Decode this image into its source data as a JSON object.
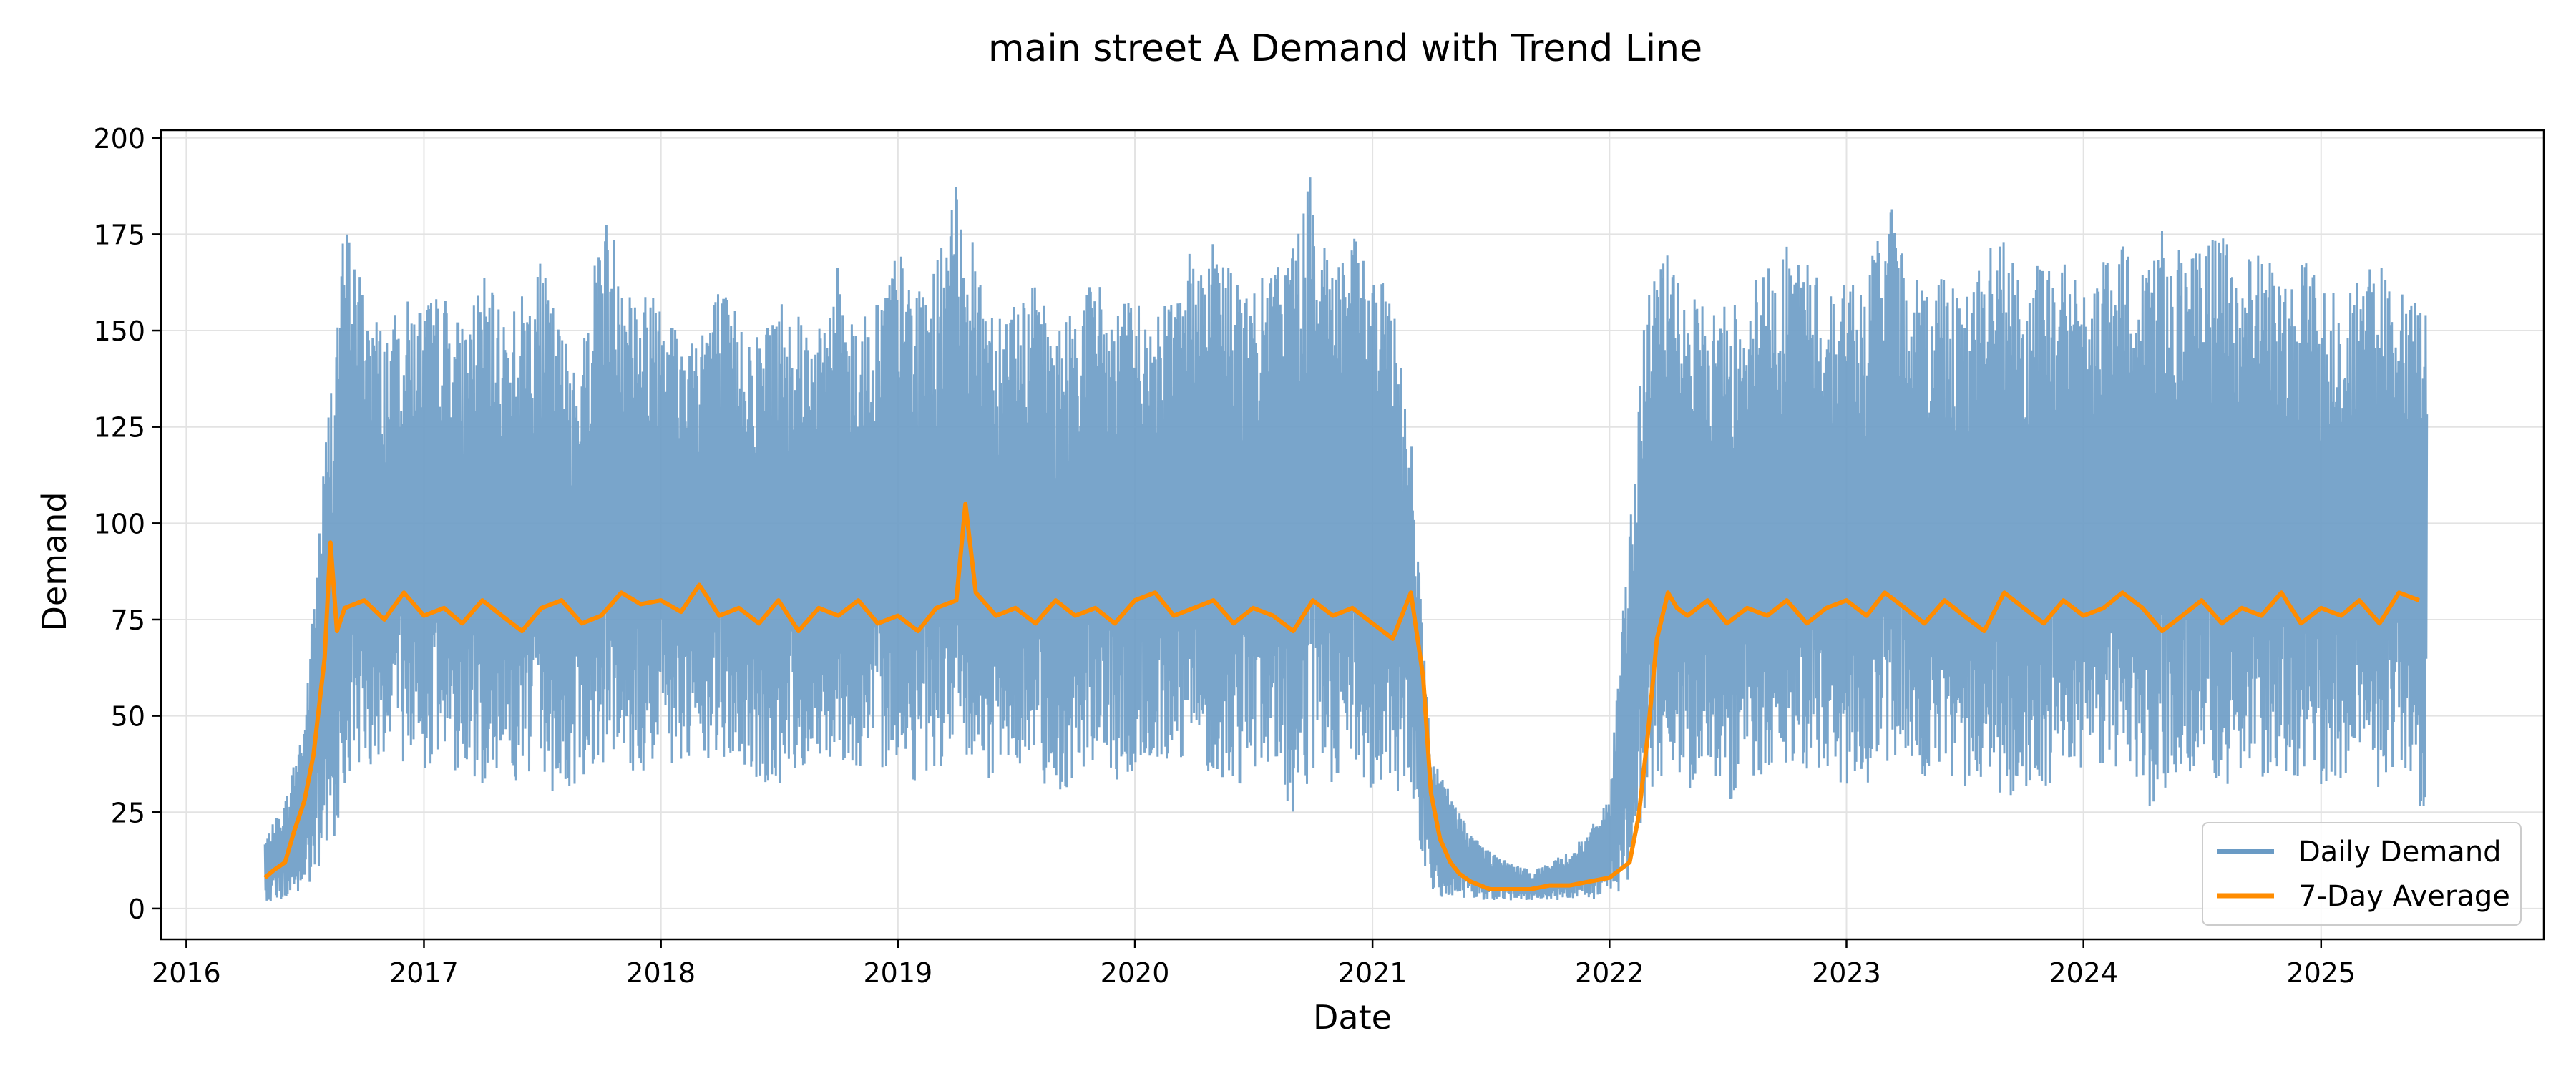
{
  "chart_data": {
    "type": "line",
    "title": "main street A Demand with Trend Line",
    "xlabel": "Date",
    "ylabel": "Demand",
    "xlim": [
      "2015-11-23",
      "2025-12-10"
    ],
    "ylim": [
      -8,
      202
    ],
    "x_ticks": [
      "2016",
      "2017",
      "2018",
      "2019",
      "2020",
      "2021",
      "2022",
      "2023",
      "2024",
      "2025"
    ],
    "y_ticks": [
      0,
      25,
      50,
      75,
      100,
      125,
      150,
      175,
      200
    ],
    "grid": true,
    "legend_position": "lower right",
    "series": [
      {
        "name": "Daily Demand",
        "color": "#6a9bc5",
        "style": "daily-envelope",
        "x": [
          "2016-05-01",
          "2016-06-01",
          "2016-07-01",
          "2016-08-01",
          "2016-09-01",
          "2016-10-01",
          "2016-11-01",
          "2016-12-01",
          "2017-01-01",
          "2017-02-01",
          "2017-03-01",
          "2017-04-01",
          "2017-05-01",
          "2017-06-01",
          "2017-07-01",
          "2017-08-01",
          "2017-09-01",
          "2017-10-01",
          "2017-11-01",
          "2017-12-01",
          "2018-01-01",
          "2018-02-01",
          "2018-03-01",
          "2018-04-01",
          "2018-05-01",
          "2018-06-01",
          "2018-07-01",
          "2018-08-01",
          "2018-09-01",
          "2018-10-01",
          "2018-11-01",
          "2018-12-01",
          "2019-01-01",
          "2019-02-01",
          "2019-03-01",
          "2019-04-01",
          "2019-05-01",
          "2019-06-01",
          "2019-07-01",
          "2019-08-01",
          "2019-09-01",
          "2019-10-01",
          "2019-11-01",
          "2019-12-01",
          "2020-01-01",
          "2020-02-01",
          "2020-03-01",
          "2020-04-01",
          "2020-05-01",
          "2020-06-01",
          "2020-07-01",
          "2020-08-01",
          "2020-09-01",
          "2020-10-01",
          "2020-11-01",
          "2020-12-01",
          "2021-01-01",
          "2021-02-01",
          "2021-03-01",
          "2021-04-01",
          "2021-05-01",
          "2021-06-01",
          "2021-07-01",
          "2021-08-01",
          "2021-09-01",
          "2021-10-01",
          "2021-11-01",
          "2021-12-01",
          "2022-01-01",
          "2022-02-01",
          "2022-03-01",
          "2022-04-01",
          "2022-05-01",
          "2022-06-01",
          "2022-07-01",
          "2022-08-01",
          "2022-09-01",
          "2022-10-01",
          "2022-11-01",
          "2022-12-01",
          "2023-01-01",
          "2023-02-01",
          "2023-03-01",
          "2023-04-01",
          "2023-05-01",
          "2023-06-01",
          "2023-07-01",
          "2023-08-01",
          "2023-09-01",
          "2023-10-01",
          "2023-11-01",
          "2023-12-01",
          "2024-01-01",
          "2024-02-01",
          "2024-03-01",
          "2024-04-01",
          "2024-05-01",
          "2024-06-01",
          "2024-07-01",
          "2024-08-01",
          "2024-09-01",
          "2024-10-01",
          "2024-11-01",
          "2024-12-01",
          "2025-01-01",
          "2025-02-01",
          "2025-03-01",
          "2025-04-01",
          "2025-05-01",
          "2025-06-01"
        ],
        "min": [
          2,
          2,
          4,
          8,
          30,
          38,
          35,
          38,
          36,
          38,
          34,
          32,
          38,
          30,
          35,
          26,
          34,
          38,
          36,
          33,
          40,
          34,
          36,
          38,
          36,
          32,
          30,
          36,
          38,
          40,
          34,
          36,
          38,
          32,
          36,
          38,
          34,
          32,
          38,
          36,
          28,
          34,
          38,
          32,
          34,
          36,
          38,
          40,
          34,
          30,
          36,
          38,
          20,
          34,
          30,
          36,
          28,
          32,
          26,
          4,
          2,
          2,
          2,
          2,
          2,
          2,
          2,
          2,
          3,
          5,
          30,
          36,
          30,
          40,
          24,
          34,
          30,
          38,
          36,
          34,
          32,
          30,
          36,
          38,
          34,
          32,
          30,
          34,
          28,
          32,
          30,
          36,
          34,
          32,
          38,
          20,
          30,
          34,
          36,
          30,
          32,
          34,
          36,
          32,
          30,
          34,
          36,
          30,
          34,
          26
        ],
        "max": [
          18,
          28,
          50,
          120,
          180,
          162,
          150,
          158,
          158,
          160,
          152,
          165,
          155,
          160,
          168,
          150,
          145,
          182,
          172,
          158,
          168,
          148,
          155,
          162,
          155,
          150,
          160,
          158,
          150,
          168,
          152,
          160,
          172,
          160,
          168,
          188,
          170,
          158,
          160,
          162,
          150,
          158,
          165,
          155,
          160,
          150,
          172,
          170,
          178,
          165,
          160,
          168,
          175,
          192,
          170,
          175,
          165,
          160,
          125,
          40,
          30,
          20,
          15,
          12,
          10,
          12,
          15,
          20,
          30,
          100,
          165,
          170,
          160,
          155,
          158,
          162,
          168,
          172,
          170,
          160,
          165,
          162,
          188,
          170,
          162,
          168,
          160,
          170,
          176,
          160,
          170,
          170,
          160,
          168,
          172,
          170,
          178,
          172,
          170,
          178,
          165,
          175,
          160,
          170,
          165,
          160,
          165,
          168,
          160,
          157
        ],
        "avg_values_note": ""
      },
      {
        "name": "7-Day Average",
        "color": "#ff8c00",
        "x": [
          "2016-05-01",
          "2016-05-15",
          "2016-06-01",
          "2016-06-15",
          "2016-07-01",
          "2016-07-15",
          "2016-08-01",
          "2016-08-10",
          "2016-08-20",
          "2016-09-01",
          "2016-10-01",
          "2016-11-01",
          "2016-12-01",
          "2017-01-01",
          "2017-02-01",
          "2017-03-01",
          "2017-04-01",
          "2017-05-01",
          "2017-06-01",
          "2017-07-01",
          "2017-08-01",
          "2017-09-01",
          "2017-10-01",
          "2017-11-01",
          "2017-12-01",
          "2018-01-01",
          "2018-02-01",
          "2018-03-01",
          "2018-04-01",
          "2018-05-01",
          "2018-06-01",
          "2018-07-01",
          "2018-08-01",
          "2018-09-01",
          "2018-10-01",
          "2018-11-01",
          "2018-12-01",
          "2019-01-01",
          "2019-02-01",
          "2019-03-01",
          "2019-04-01",
          "2019-04-15",
          "2019-05-01",
          "2019-06-01",
          "2019-07-01",
          "2019-08-01",
          "2019-09-01",
          "2019-10-01",
          "2019-11-01",
          "2019-12-01",
          "2020-01-01",
          "2020-02-01",
          "2020-03-01",
          "2020-04-01",
          "2020-05-01",
          "2020-06-01",
          "2020-07-01",
          "2020-08-01",
          "2020-09-01",
          "2020-10-01",
          "2020-11-01",
          "2020-12-01",
          "2021-01-01",
          "2021-02-01",
          "2021-03-01",
          "2021-03-20",
          "2021-04-01",
          "2021-04-15",
          "2021-05-01",
          "2021-05-15",
          "2021-06-01",
          "2021-07-01",
          "2021-08-01",
          "2021-09-01",
          "2021-10-01",
          "2021-11-01",
          "2021-12-01",
          "2022-01-01",
          "2022-02-01",
          "2022-02-15",
          "2022-03-01",
          "2022-03-15",
          "2022-04-01",
          "2022-04-15",
          "2022-05-01",
          "2022-06-01",
          "2022-07-01",
          "2022-08-01",
          "2022-09-01",
          "2022-10-01",
          "2022-11-01",
          "2022-12-01",
          "2023-01-01",
          "2023-02-01",
          "2023-03-01",
          "2023-04-01",
          "2023-05-01",
          "2023-06-01",
          "2023-07-01",
          "2023-08-01",
          "2023-09-01",
          "2023-10-01",
          "2023-11-01",
          "2023-12-01",
          "2024-01-01",
          "2024-02-01",
          "2024-03-01",
          "2024-04-01",
          "2024-05-01",
          "2024-06-01",
          "2024-07-01",
          "2024-08-01",
          "2024-09-01",
          "2024-10-01",
          "2024-11-01",
          "2024-12-01",
          "2025-01-01",
          "2025-02-01",
          "2025-03-01",
          "2025-04-01",
          "2025-05-01",
          "2025-06-01"
        ],
        "values": [
          8,
          10,
          12,
          20,
          28,
          40,
          65,
          95,
          72,
          78,
          80,
          75,
          82,
          76,
          78,
          74,
          80,
          76,
          72,
          78,
          80,
          74,
          76,
          82,
          79,
          80,
          77,
          84,
          76,
          78,
          74,
          80,
          72,
          78,
          76,
          80,
          74,
          76,
          72,
          78,
          80,
          105,
          82,
          76,
          78,
          74,
          80,
          76,
          78,
          74,
          80,
          82,
          76,
          78,
          80,
          74,
          78,
          76,
          72,
          80,
          76,
          78,
          74,
          70,
          82,
          60,
          30,
          18,
          12,
          9,
          7,
          5,
          5,
          5,
          6,
          6,
          7,
          8,
          12,
          24,
          45,
          70,
          82,
          78,
          76,
          80,
          74,
          78,
          76,
          80,
          74,
          78,
          80,
          76,
          82,
          78,
          74,
          80,
          76,
          72,
          82,
          78,
          74,
          80,
          76,
          78,
          82,
          78,
          72,
          76,
          80,
          74,
          78,
          76,
          82,
          74,
          78,
          76,
          80,
          74,
          82,
          80
        ]
      }
    ]
  }
}
